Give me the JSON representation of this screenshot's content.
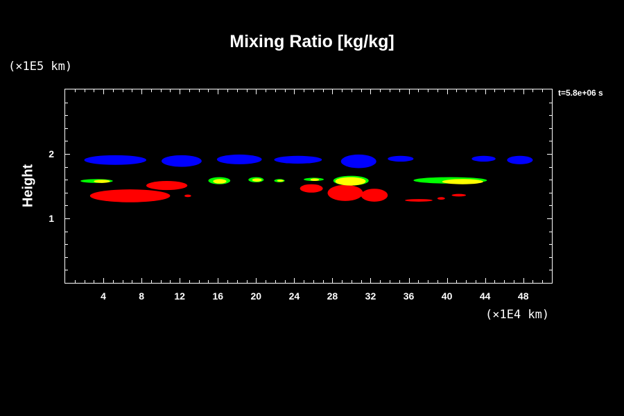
{
  "chart_data": {
    "type": "heatmap",
    "title": "Mixing Ratio [kg/kg]",
    "ylabel": "Height",
    "xlabel": "",
    "y_scale_label": "(×1E5 km)",
    "x_scale_label": "(×1E4 km)",
    "time_label": "t=5.8e+06 s",
    "xlim": [
      0,
      51
    ],
    "ylim": [
      0,
      3
    ],
    "x_ticks": [
      "4",
      "8",
      "12",
      "16",
      "20",
      "24",
      "28",
      "32",
      "36",
      "40",
      "44",
      "48"
    ],
    "y_ticks": [
      "1",
      "2"
    ],
    "colors": {
      "blue": "#0000ff",
      "green": "#00ff00",
      "yellow": "#ffff00",
      "red": "#ff0000"
    },
    "regions": [
      {
        "color": "blue",
        "x": [
          2.0,
          8.5
        ],
        "y": [
          1.83,
          1.98
        ]
      },
      {
        "color": "blue",
        "x": [
          10.1,
          14.3
        ],
        "y": [
          1.8,
          1.98
        ]
      },
      {
        "color": "blue",
        "x": [
          15.9,
          20.6
        ],
        "y": [
          1.84,
          1.99
        ]
      },
      {
        "color": "blue",
        "x": [
          21.9,
          26.9
        ],
        "y": [
          1.85,
          1.97
        ]
      },
      {
        "color": "blue",
        "x": [
          28.9,
          32.6
        ],
        "y": [
          1.78,
          1.99
        ]
      },
      {
        "color": "blue",
        "x": [
          33.8,
          36.5
        ],
        "y": [
          1.88,
          1.97
        ]
      },
      {
        "color": "blue",
        "x": [
          42.6,
          45.1
        ],
        "y": [
          1.88,
          1.97
        ]
      },
      {
        "color": "blue",
        "x": [
          46.3,
          49.0
        ],
        "y": [
          1.84,
          1.97
        ]
      },
      {
        "color": "red",
        "x": [
          2.6,
          11.0
        ],
        "y": [
          1.25,
          1.45
        ]
      },
      {
        "color": "red",
        "x": [
          8.5,
          12.8
        ],
        "y": [
          1.44,
          1.58
        ]
      },
      {
        "color": "red",
        "x": [
          12.5,
          13.2
        ],
        "y": [
          1.33,
          1.37
        ]
      },
      {
        "color": "red",
        "x": [
          24.6,
          27.0
        ],
        "y": [
          1.4,
          1.53
        ]
      },
      {
        "color": "red",
        "x": [
          27.5,
          31.2
        ],
        "y": [
          1.27,
          1.52
        ]
      },
      {
        "color": "red",
        "x": [
          31.0,
          33.8
        ],
        "y": [
          1.26,
          1.46
        ]
      },
      {
        "color": "red",
        "x": [
          35.6,
          38.5
        ],
        "y": [
          1.26,
          1.3
        ]
      },
      {
        "color": "red",
        "x": [
          39.0,
          39.8
        ],
        "y": [
          1.29,
          1.33
        ]
      },
      {
        "color": "red",
        "x": [
          40.5,
          42.0
        ],
        "y": [
          1.34,
          1.38
        ]
      },
      {
        "color": "green",
        "x": [
          1.6,
          5.0
        ],
        "y": [
          1.55,
          1.61
        ]
      },
      {
        "color": "yellow",
        "x": [
          3.0,
          4.7
        ],
        "y": [
          1.55,
          1.6
        ]
      },
      {
        "color": "green",
        "x": [
          15.0,
          17.3
        ],
        "y": [
          1.53,
          1.64
        ]
      },
      {
        "color": "yellow",
        "x": [
          15.5,
          16.9
        ],
        "y": [
          1.54,
          1.61
        ]
      },
      {
        "color": "green",
        "x": [
          19.2,
          20.8
        ],
        "y": [
          1.56,
          1.64
        ]
      },
      {
        "color": "yellow",
        "x": [
          19.6,
          20.6
        ],
        "y": [
          1.57,
          1.62
        ]
      },
      {
        "color": "green",
        "x": [
          21.9,
          23.0
        ],
        "y": [
          1.56,
          1.61
        ]
      },
      {
        "color": "yellow",
        "x": [
          22.2,
          22.9
        ],
        "y": [
          1.57,
          1.6
        ]
      },
      {
        "color": "green",
        "x": [
          25.0,
          27.1
        ],
        "y": [
          1.58,
          1.63
        ]
      },
      {
        "color": "yellow",
        "x": [
          25.7,
          26.6
        ],
        "y": [
          1.58,
          1.62
        ]
      },
      {
        "color": "green",
        "x": [
          28.1,
          31.8
        ],
        "y": [
          1.51,
          1.66
        ]
      },
      {
        "color": "yellow",
        "x": [
          28.3,
          31.5
        ],
        "y": [
          1.51,
          1.64
        ]
      },
      {
        "color": "green",
        "x": [
          36.5,
          44.2
        ],
        "y": [
          1.54,
          1.64
        ]
      },
      {
        "color": "yellow",
        "x": [
          39.5,
          43.8
        ],
        "y": [
          1.53,
          1.61
        ]
      }
    ]
  }
}
